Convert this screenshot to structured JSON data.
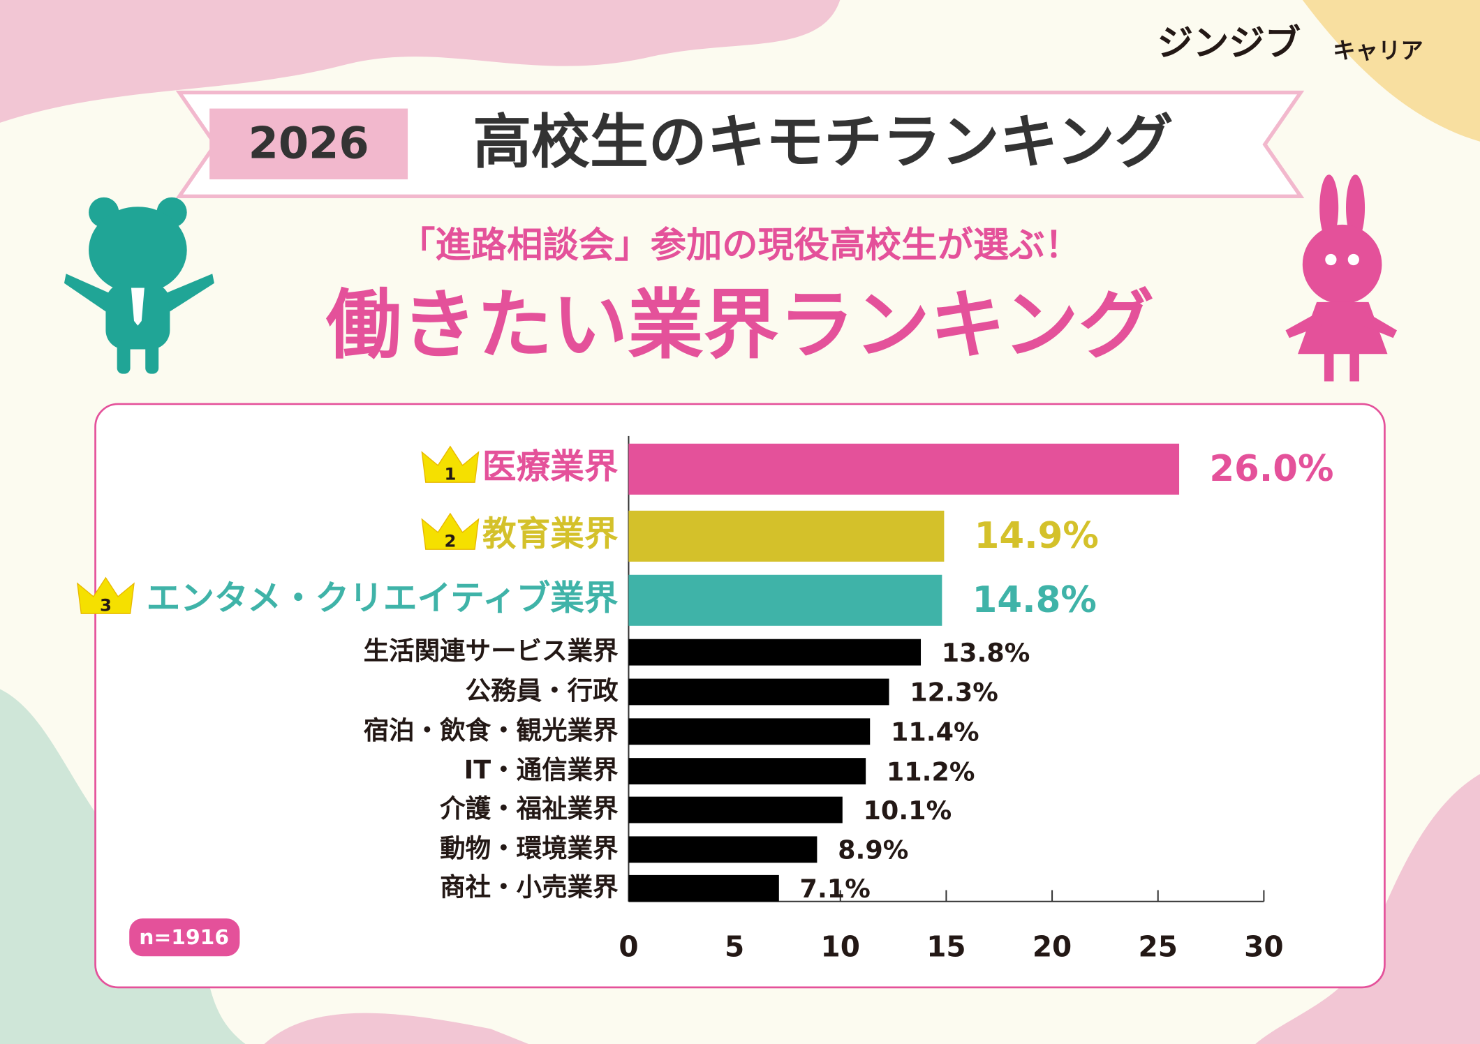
{
  "logo": {
    "main": "ジンジブ",
    "sub": "キャリア"
  },
  "banner": {
    "year": "2026",
    "title": "高校生のキモチランキング"
  },
  "subtitle": "「進路相談会」参加の現役高校生が選ぶ！",
  "headline": "働きたい業界ランキング",
  "chart_data": {
    "type": "bar",
    "orientation": "horizontal",
    "categories": [
      "医療業界",
      "教育業界",
      "エンタメ・クリエイティブ業界",
      "生活関連サービス業界",
      "公務員・行政",
      "宿泊・飲食・観光業界",
      "IT・通信業界",
      "介護・福祉業界",
      "動物・環境業界",
      "商社・小売業界"
    ],
    "values": [
      26.0,
      14.9,
      14.8,
      13.8,
      12.3,
      11.4,
      11.2,
      10.1,
      8.9,
      7.1
    ],
    "value_labels": [
      "26.0%",
      "14.9%",
      "14.8%",
      "13.8%",
      "12.3%",
      "11.4%",
      "11.2%",
      "10.1%",
      "8.9%",
      "7.1%"
    ],
    "colors": [
      "#e4519a",
      "#d4c12a",
      "#3fb3a8",
      "#000000",
      "#000000",
      "#000000",
      "#000000",
      "#000000",
      "#000000",
      "#000000"
    ],
    "ranks": [
      1,
      2,
      3
    ],
    "xlim": [
      0,
      30
    ],
    "xticks": [
      0,
      5,
      10,
      15,
      20,
      25,
      30
    ],
    "sample_size": "n=1916"
  }
}
